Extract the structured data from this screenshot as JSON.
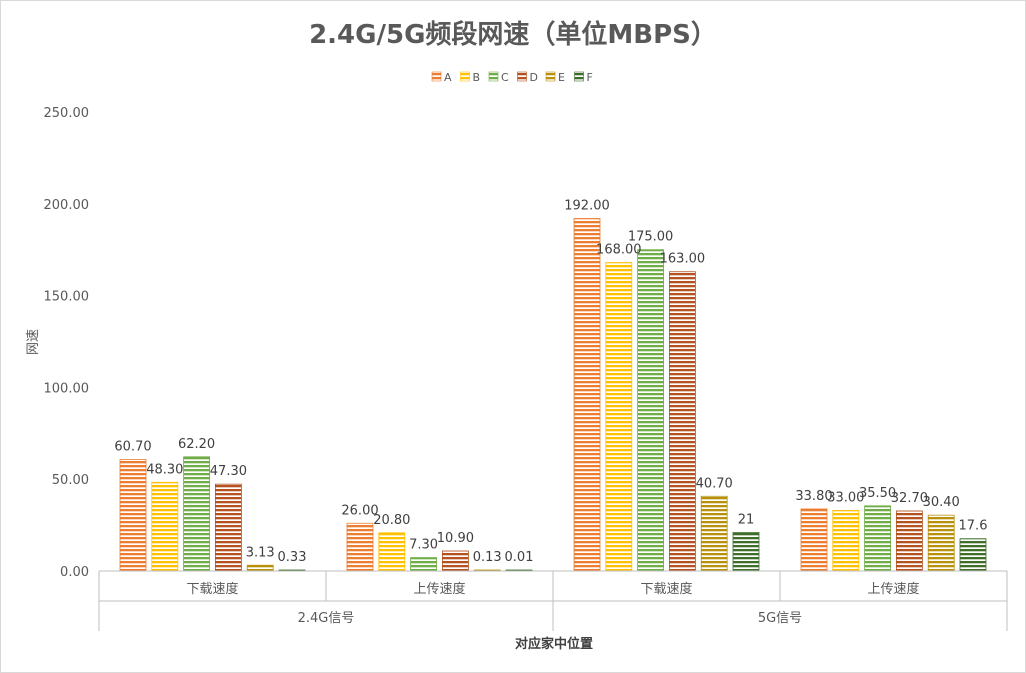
{
  "chart_data": {
    "type": "bar",
    "title": "2.4G/5G频段网速（单位MBPS）",
    "ylabel": "网速",
    "xlabel": "对应家中位置",
    "ylim": [
      0,
      250
    ],
    "yticks": [
      "0.00",
      "50.00",
      "100.00",
      "150.00",
      "200.00",
      "250.00"
    ],
    "grid": false,
    "legend_position": "top-center",
    "groups": [
      {
        "label": "2.4G信号",
        "categories": [
          "下载速度",
          "上传速度"
        ]
      },
      {
        "label": "5G信号",
        "categories": [
          "下载速度",
          "上传速度"
        ]
      }
    ],
    "series": [
      {
        "name": "A",
        "color": "#ed7d31",
        "values": [
          60.7,
          26.0,
          192.0,
          33.8
        ],
        "labels": [
          "60.70",
          "26.00",
          "192.00",
          "33.80"
        ]
      },
      {
        "name": "B",
        "color": "#ffc000",
        "values": [
          48.3,
          20.8,
          168.0,
          33.0
        ],
        "labels": [
          "48.30",
          "20.80",
          "168.00",
          "33.00"
        ]
      },
      {
        "name": "C",
        "color": "#70ad47",
        "values": [
          62.2,
          7.3,
          175.0,
          35.5
        ],
        "labels": [
          "62.20",
          "7.30",
          "175.00",
          "35.50"
        ]
      },
      {
        "name": "D",
        "color": "#b4531f",
        "values": [
          47.3,
          10.9,
          163.0,
          32.7
        ],
        "labels": [
          "47.30",
          "10.90",
          "163.00",
          "32.70"
        ]
      },
      {
        "name": "E",
        "color": "#b8900c",
        "values": [
          3.13,
          0.13,
          40.7,
          30.4
        ],
        "labels": [
          "3.13",
          "0.13",
          "40.70",
          "30.40"
        ]
      },
      {
        "name": "F",
        "color": "#3f6e2a",
        "values": [
          0.33,
          0.01,
          21,
          17.6
        ],
        "labels": [
          "0.33",
          "0.01",
          "21",
          "17.6"
        ]
      }
    ]
  }
}
